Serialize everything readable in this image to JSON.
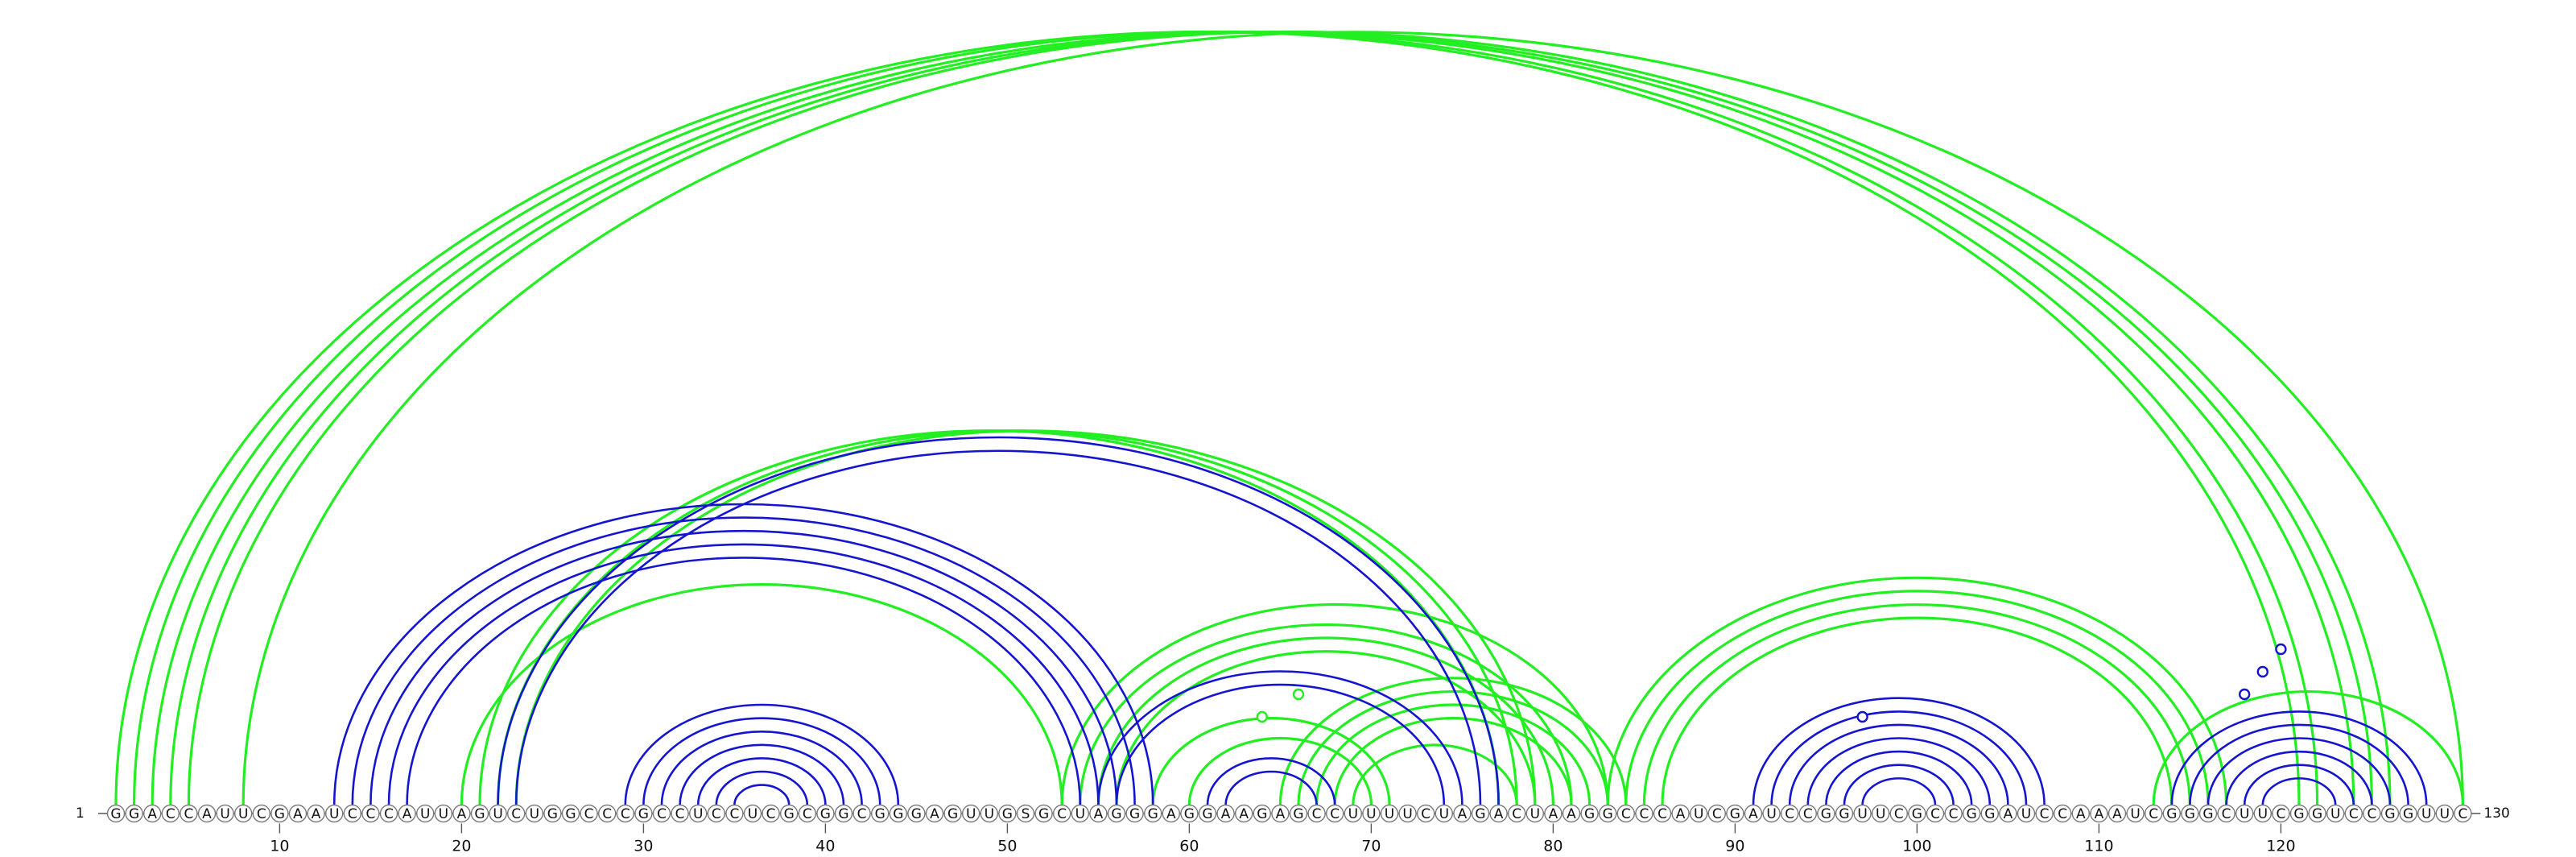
{
  "sequence": "GGACCAUUCGAAUCCCAUUAGUCUGGCCCGCCUCCUCGCGGCGGGAGUUGSGCUAGGGAGGAAGAGCCUUUUCUAGACUAAGGCCCAUCGAUCCGGUUCGCCGGAUCCAAAUCGGGCUUCGGUCCGGUUC",
  "start_label": "1",
  "end_label": "130",
  "ticks": [
    10,
    20,
    30,
    40,
    50,
    60,
    70,
    80,
    90,
    100,
    110,
    120
  ],
  "colors": {
    "green": "#22ee22",
    "blue": "#1515d0",
    "axis": "#555555"
  },
  "green_pairs": [
    [
      1,
      121
    ],
    [
      2,
      122
    ],
    [
      3,
      124
    ],
    [
      4,
      125
    ],
    [
      5,
      126
    ],
    [
      8,
      130
    ],
    [
      21,
      77
    ],
    [
      22,
      78
    ],
    [
      23,
      79
    ],
    [
      20,
      53
    ],
    [
      53,
      83
    ],
    [
      54,
      81
    ],
    [
      55,
      80
    ],
    [
      56,
      79
    ],
    [
      58,
      71
    ],
    [
      60,
      70
    ],
    [
      65,
      84
    ],
    [
      66,
      83
    ],
    [
      67,
      82
    ],
    [
      68,
      81
    ],
    [
      69,
      78
    ],
    [
      83,
      117
    ],
    [
      84,
      116
    ],
    [
      85,
      115
    ],
    [
      86,
      114
    ],
    [
      113,
      130
    ]
  ],
  "blue_pairs": [
    [
      13,
      58
    ],
    [
      14,
      57
    ],
    [
      15,
      56
    ],
    [
      16,
      55
    ],
    [
      17,
      54
    ],
    [
      22,
      77
    ],
    [
      23,
      76
    ],
    [
      29,
      44
    ],
    [
      30,
      43
    ],
    [
      31,
      42
    ],
    [
      32,
      41
    ],
    [
      33,
      40
    ],
    [
      34,
      39
    ],
    [
      35,
      38
    ],
    [
      55,
      75
    ],
    [
      56,
      74
    ],
    [
      61,
      68
    ],
    [
      62,
      67
    ],
    [
      91,
      107
    ],
    [
      92,
      106
    ],
    [
      93,
      105
    ],
    [
      94,
      104
    ],
    [
      95,
      103
    ],
    [
      96,
      102
    ],
    [
      97,
      101
    ],
    [
      114,
      128
    ],
    [
      115,
      127
    ],
    [
      116,
      126
    ],
    [
      117,
      125
    ],
    [
      118,
      124
    ],
    [
      119,
      123
    ]
  ],
  "green_markers": [
    64,
    66
  ],
  "blue_markers": [
    97,
    118,
    119,
    120
  ]
}
